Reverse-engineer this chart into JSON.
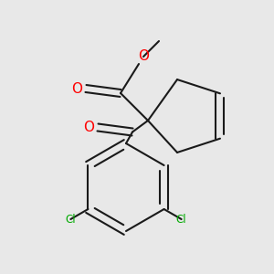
{
  "background_color": "#e8e8e8",
  "bond_color": "#1a1a1a",
  "oxygen_color": "#ff0000",
  "chlorine_color": "#00aa00",
  "line_width": 1.5,
  "figsize": [
    3.0,
    3.0
  ],
  "dpi": 100,
  "xlim": [
    0,
    300
  ],
  "ylim": [
    0,
    300
  ]
}
